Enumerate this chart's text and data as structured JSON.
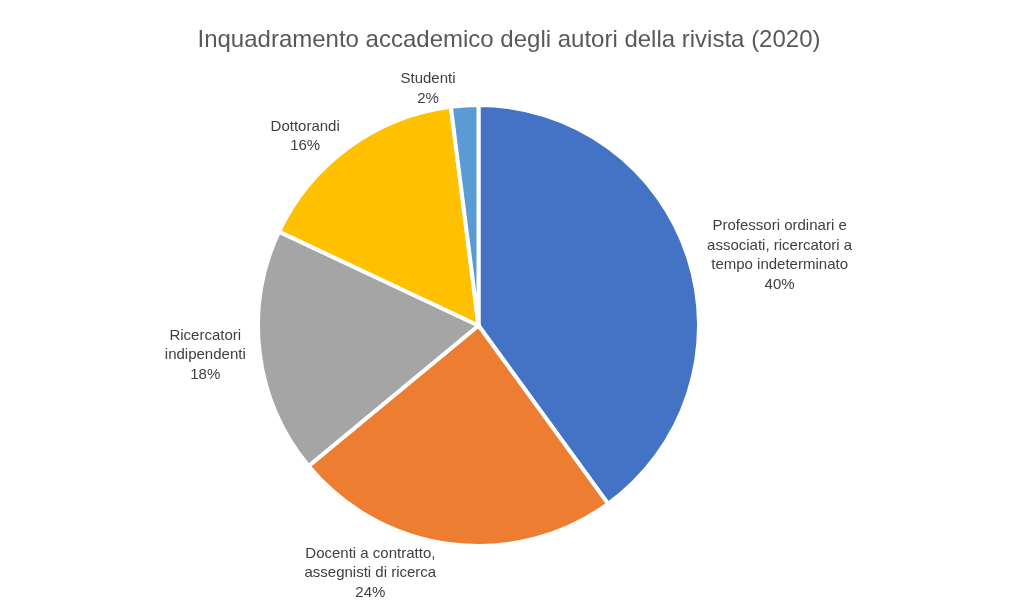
{
  "chart_data": {
    "type": "pie",
    "title": "Inquadramento accademico degli autori della rivista (2020)",
    "categories": [
      "Professori ordinari e associati, ricercatori a tempo indeterminato",
      "Docenti a contratto, assegnisti di ricerca",
      "Ricercatori indipendenti",
      "Dottorandi",
      "Studenti"
    ],
    "values": [
      40,
      24,
      18,
      16,
      2
    ],
    "value_labels": [
      "40%",
      "24%",
      "18%",
      "16%",
      "2%"
    ],
    "colors": [
      "#4472c4",
      "#ed7d31",
      "#a5a5a5",
      "#ffc000",
      "#5b9bd5"
    ],
    "legend": false
  }
}
